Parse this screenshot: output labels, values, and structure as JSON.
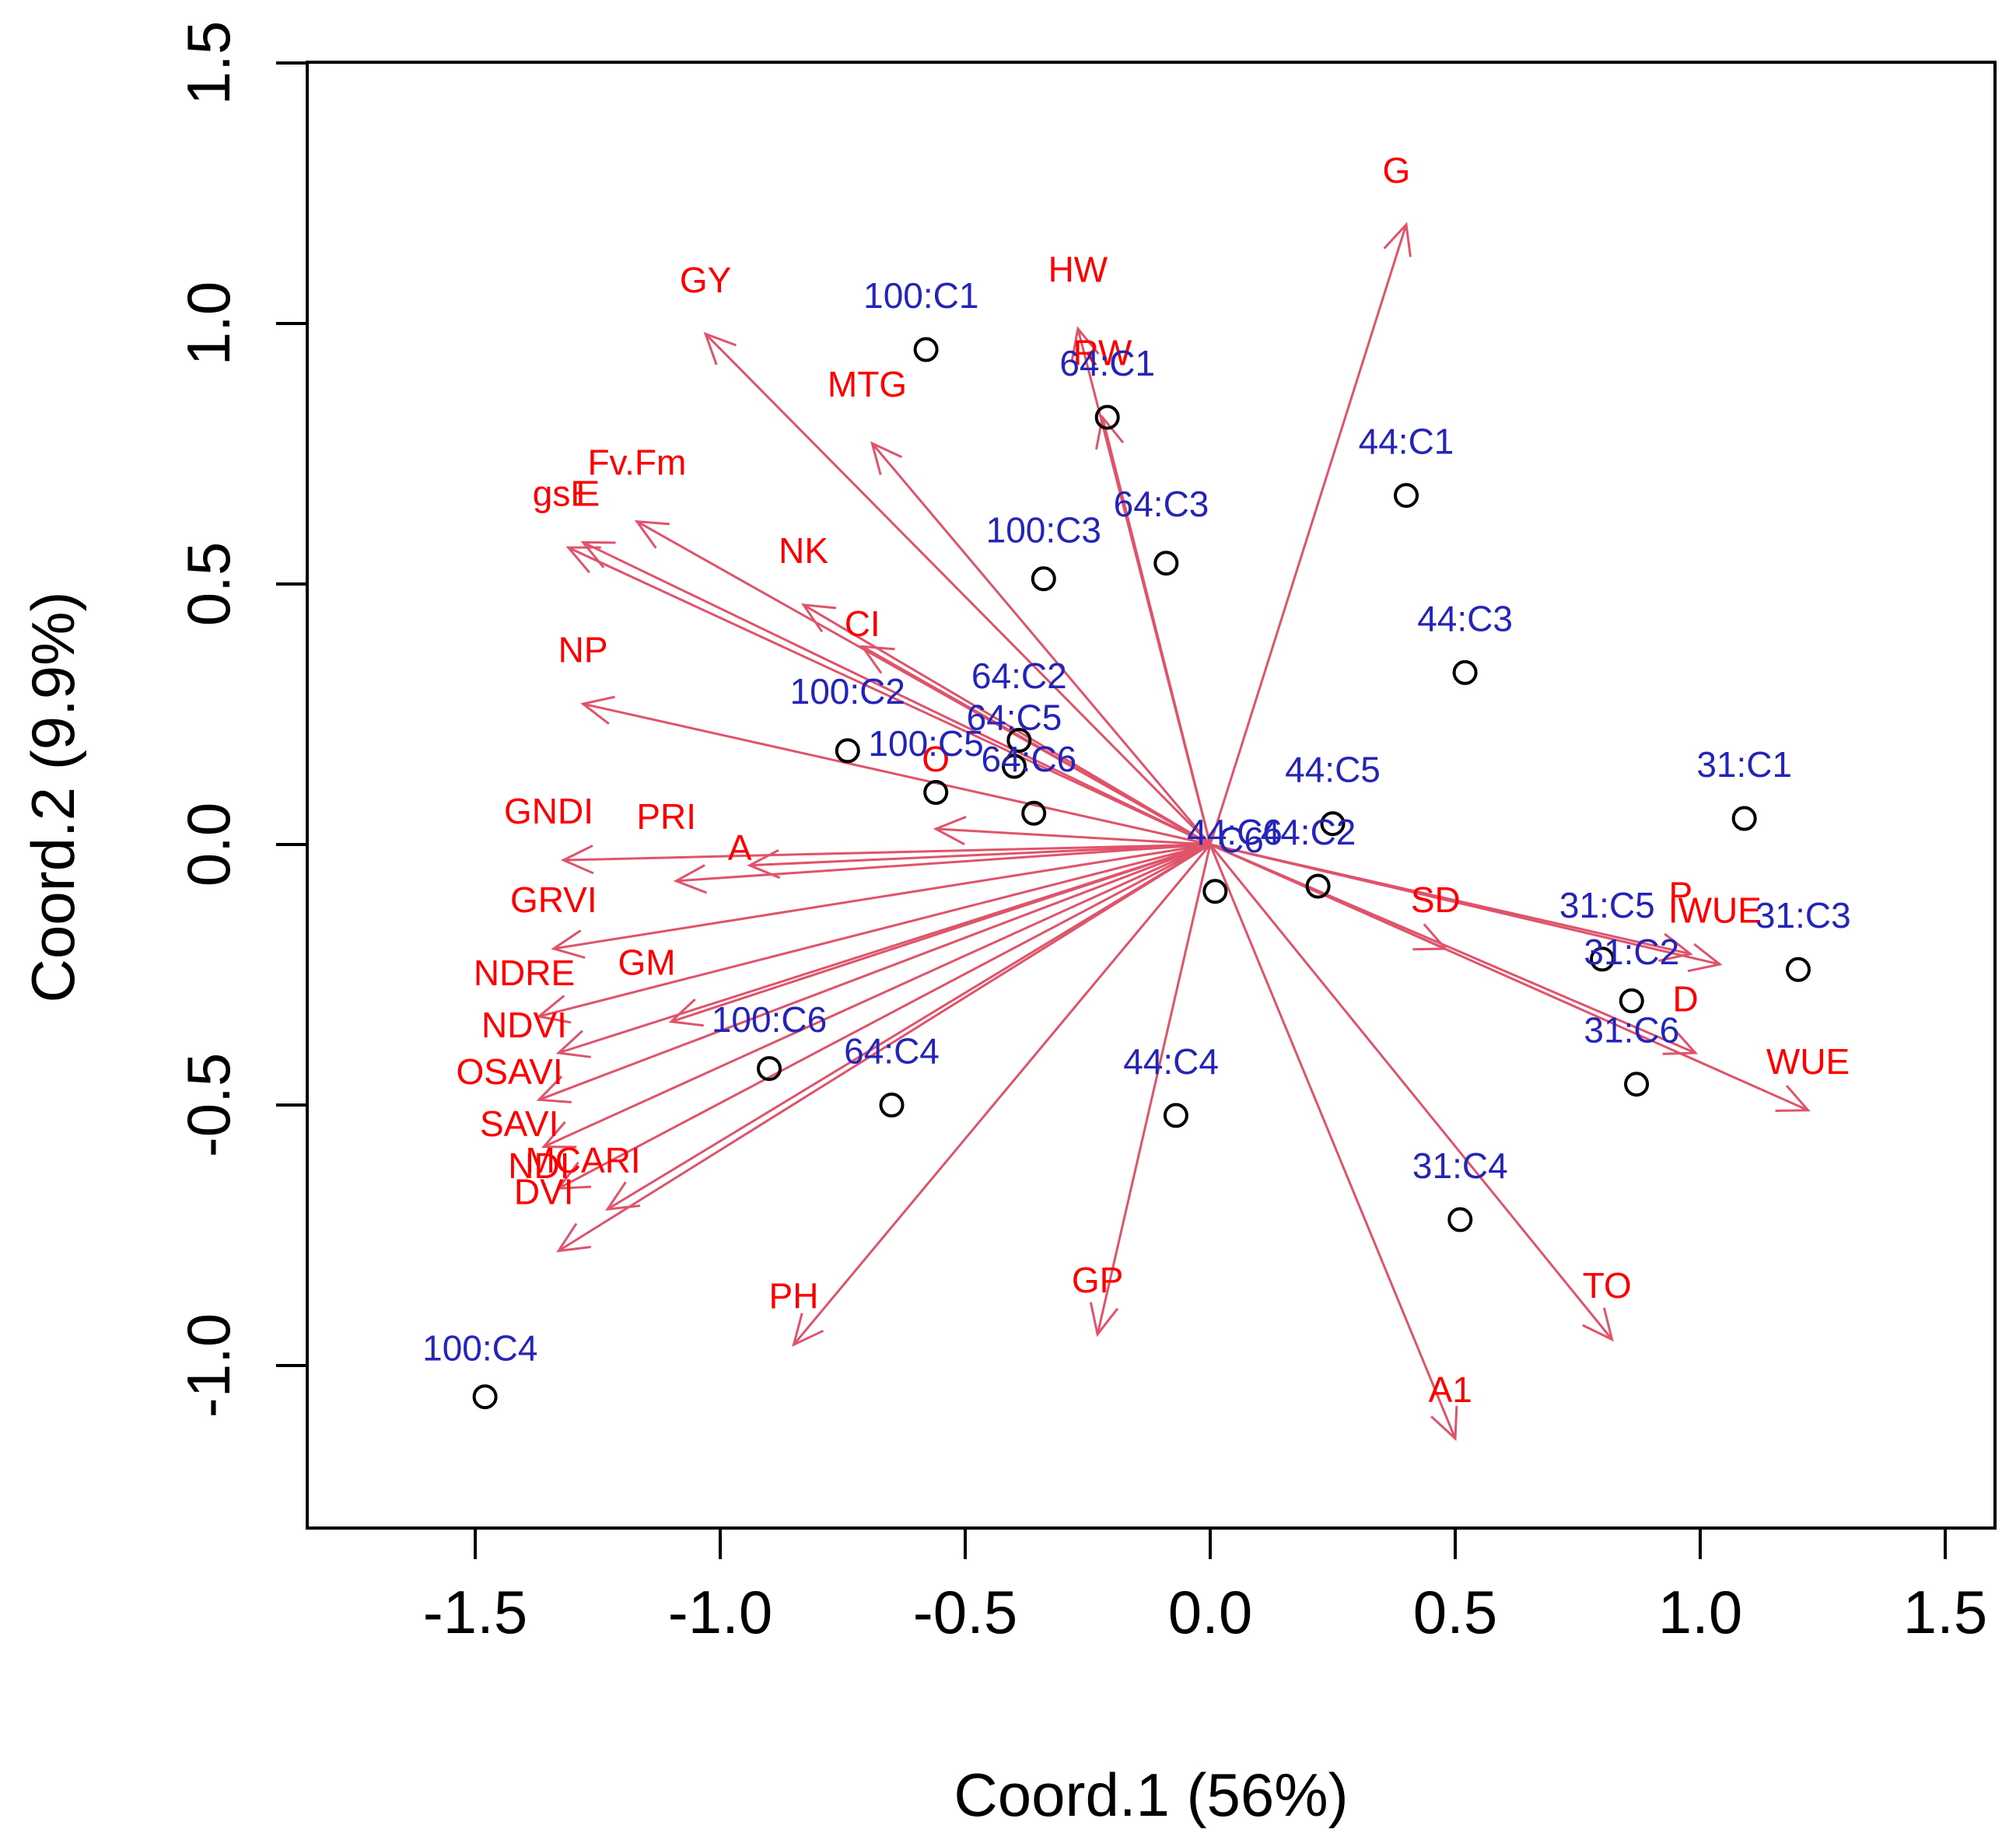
{
  "chart_data": {
    "type": "scatter",
    "subtype": "biplot",
    "xlabel": "Coord.1 (56%)",
    "ylabel": "Coord.2 (9.9%)",
    "xlim": [
      -1.85,
      1.65
    ],
    "ylim": [
      -1.3,
      1.5
    ],
    "xticks": [
      -1.5,
      -1.0,
      -0.5,
      0.0,
      0.5,
      1.0,
      1.5
    ],
    "yticks": [
      -1.0,
      -0.5,
      0.0,
      0.5,
      1.0,
      1.5
    ],
    "xtick_labels": [
      "-1.5",
      "-1.0",
      "-0.5",
      "0.0",
      "0.5",
      "1.0",
      "1.5"
    ],
    "ytick_labels": [
      "-1.0",
      "-0.5",
      "0.0",
      "0.5",
      "1.0",
      "1.5"
    ],
    "colors": {
      "variables": "#df536b",
      "variable_text": "#ff0000",
      "observation_text": "#2424b8",
      "points": "#000000"
    },
    "origin_label": "C6",
    "variables": [
      {
        "name": "G",
        "x": 0.4,
        "y": 1.19,
        "lx": 0.38,
        "ly": 1.27
      },
      {
        "name": "HW",
        "x": -0.27,
        "y": 0.99,
        "lx": -0.27,
        "ly": 1.08
      },
      {
        "name": "RW",
        "x": -0.22,
        "y": 0.82,
        "lx": -0.22,
        "ly": 0.92
      },
      {
        "name": "GY",
        "x": -1.03,
        "y": 0.98,
        "lx": -1.03,
        "ly": 1.06
      },
      {
        "name": "MTG",
        "x": -0.69,
        "y": 0.77,
        "lx": -0.7,
        "ly": 0.86
      },
      {
        "name": "Fv.Fm",
        "x": -1.17,
        "y": 0.62,
        "lx": -1.17,
        "ly": 0.71
      },
      {
        "name": "gsE",
        "x": -1.31,
        "y": 0.57,
        "lx": -1.32,
        "ly": 0.65
      },
      {
        "name": "E",
        "x": -1.28,
        "y": 0.58,
        "lx": -1.27,
        "ly": 0.65
      },
      {
        "name": "NK",
        "x": -0.83,
        "y": 0.46,
        "lx": -0.83,
        "ly": 0.54
      },
      {
        "name": "CI",
        "x": -0.71,
        "y": 0.38,
        "lx": -0.71,
        "ly": 0.4
      },
      {
        "name": "NP",
        "x": -1.28,
        "y": 0.27,
        "lx": -1.28,
        "ly": 0.35
      },
      {
        "name": "O",
        "x": -0.56,
        "y": 0.03,
        "lx": -0.56,
        "ly": 0.14
      },
      {
        "name": "GNDI",
        "x": -1.32,
        "y": -0.03,
        "lx": -1.35,
        "ly": 0.04
      },
      {
        "name": "PRI",
        "x": -1.09,
        "y": -0.07,
        "lx": -1.11,
        "ly": 0.03
      },
      {
        "name": "A",
        "x": -0.94,
        "y": -0.04,
        "lx": -0.96,
        "ly": -0.03
      },
      {
        "name": "GRVI",
        "x": -1.34,
        "y": -0.2,
        "lx": -1.34,
        "ly": -0.13
      },
      {
        "name": "GM",
        "x": -1.1,
        "y": -0.34,
        "lx": -1.15,
        "ly": -0.25
      },
      {
        "name": "NDRE",
        "x": -1.37,
        "y": -0.33,
        "lx": -1.4,
        "ly": -0.27
      },
      {
        "name": "NDVI",
        "x": -1.33,
        "y": -0.4,
        "lx": -1.4,
        "ly": -0.37
      },
      {
        "name": "OSAVI",
        "x": -1.37,
        "y": -0.49,
        "lx": -1.43,
        "ly": -0.46
      },
      {
        "name": "SAVI",
        "x": -1.36,
        "y": -0.58,
        "lx": -1.41,
        "ly": -0.56
      },
      {
        "name": "MCARI",
        "x": -1.23,
        "y": -0.7,
        "lx": -1.28,
        "ly": -0.63
      },
      {
        "name": "NDI",
        "x": -1.33,
        "y": -0.66,
        "lx": -1.37,
        "ly": -0.64
      },
      {
        "name": "DVI",
        "x": -1.33,
        "y": -0.78,
        "lx": -1.36,
        "ly": -0.69
      },
      {
        "name": "PH",
        "x": -0.85,
        "y": -0.96,
        "lx": -0.85,
        "ly": -0.89
      },
      {
        "name": "GP",
        "x": -0.23,
        "y": -0.94,
        "lx": -0.23,
        "ly": -0.86
      },
      {
        "name": "A1",
        "x": 0.5,
        "y": -1.14,
        "lx": 0.49,
        "ly": -1.07
      },
      {
        "name": "TO",
        "x": 0.82,
        "y": -0.95,
        "lx": 0.81,
        "ly": -0.87
      },
      {
        "name": "SD",
        "x": 0.48,
        "y": -0.2,
        "lx": 0.46,
        "ly": -0.13
      },
      {
        "name": "P",
        "x": 0.98,
        "y": -0.21,
        "lx": 0.96,
        "ly": -0.12
      },
      {
        "name": "IWUE",
        "x": 1.04,
        "y": -0.23,
        "lx": 1.03,
        "ly": -0.15
      },
      {
        "name": "D",
        "x": 0.99,
        "y": -0.4,
        "lx": 0.97,
        "ly": -0.32
      },
      {
        "name": "WUE",
        "x": 1.22,
        "y": -0.51,
        "lx": 1.22,
        "ly": -0.44
      }
    ],
    "observations": [
      {
        "name": "100:C1",
        "x": -0.58,
        "y": 0.95,
        "lx": -0.59,
        "ly": 1.03
      },
      {
        "name": "64:C1",
        "x": -0.21,
        "y": 0.82,
        "lx": -0.21,
        "ly": 0.9
      },
      {
        "name": "44:C1",
        "x": 0.4,
        "y": 0.67,
        "lx": 0.4,
        "ly": 0.75
      },
      {
        "name": "64:C3",
        "x": -0.09,
        "y": 0.54,
        "lx": -0.1,
        "ly": 0.63
      },
      {
        "name": "100:C3",
        "x": -0.34,
        "y": 0.51,
        "lx": -0.34,
        "ly": 0.58
      },
      {
        "name": "44:C3",
        "x": 0.52,
        "y": 0.33,
        "lx": 0.52,
        "ly": 0.41
      },
      {
        "name": "64:C2",
        "x": -0.39,
        "y": 0.2,
        "lx": -0.39,
        "ly": 0.3
      },
      {
        "name": "100:C2",
        "x": -0.74,
        "y": 0.18,
        "lx": -0.74,
        "ly": 0.27
      },
      {
        "name": "64:C5",
        "x": -0.4,
        "y": 0.15,
        "lx": -0.4,
        "ly": 0.22
      },
      {
        "name": "100:C5",
        "x": -0.56,
        "y": 0.1,
        "lx": -0.58,
        "ly": 0.17
      },
      {
        "name": "64:C6",
        "x": -0.36,
        "y": 0.06,
        "lx": -0.37,
        "ly": 0.14
      },
      {
        "name": "31:C1",
        "x": 1.09,
        "y": 0.05,
        "lx": 1.09,
        "ly": 0.13
      },
      {
        "name": "44:C5",
        "x": 0.25,
        "y": 0.04,
        "lx": 0.25,
        "ly": 0.12
      },
      {
        "name": "44:C2",
        "x": 0.22,
        "y": -0.08,
        "lx": 0.2,
        "ly": 0.0
      },
      {
        "name": "44:C6",
        "x": 0.01,
        "y": -0.09,
        "lx": 0.05,
        "ly": 0.0
      },
      {
        "name": "31:C5",
        "x": 0.8,
        "y": -0.22,
        "lx": 0.81,
        "ly": -0.14
      },
      {
        "name": "31:C2",
        "x": 0.86,
        "y": -0.3,
        "lx": 0.86,
        "ly": -0.23
      },
      {
        "name": "31:C3",
        "x": 1.2,
        "y": -0.24,
        "lx": 1.21,
        "ly": -0.16
      },
      {
        "name": "31:C6",
        "x": 0.87,
        "y": -0.46,
        "lx": 0.86,
        "ly": -0.38
      },
      {
        "name": "100:C6",
        "x": -0.9,
        "y": -0.43,
        "lx": -0.9,
        "ly": -0.36
      },
      {
        "name": "64:C4",
        "x": -0.65,
        "y": -0.5,
        "lx": -0.65,
        "ly": -0.42
      },
      {
        "name": "44:C4",
        "x": -0.07,
        "y": -0.52,
        "lx": -0.08,
        "ly": -0.44
      },
      {
        "name": "31:C4",
        "x": 0.51,
        "y": -0.72,
        "lx": 0.51,
        "ly": -0.64
      },
      {
        "name": "100:C4",
        "x": -1.48,
        "y": -1.06,
        "lx": -1.49,
        "ly": -0.99
      }
    ]
  }
}
